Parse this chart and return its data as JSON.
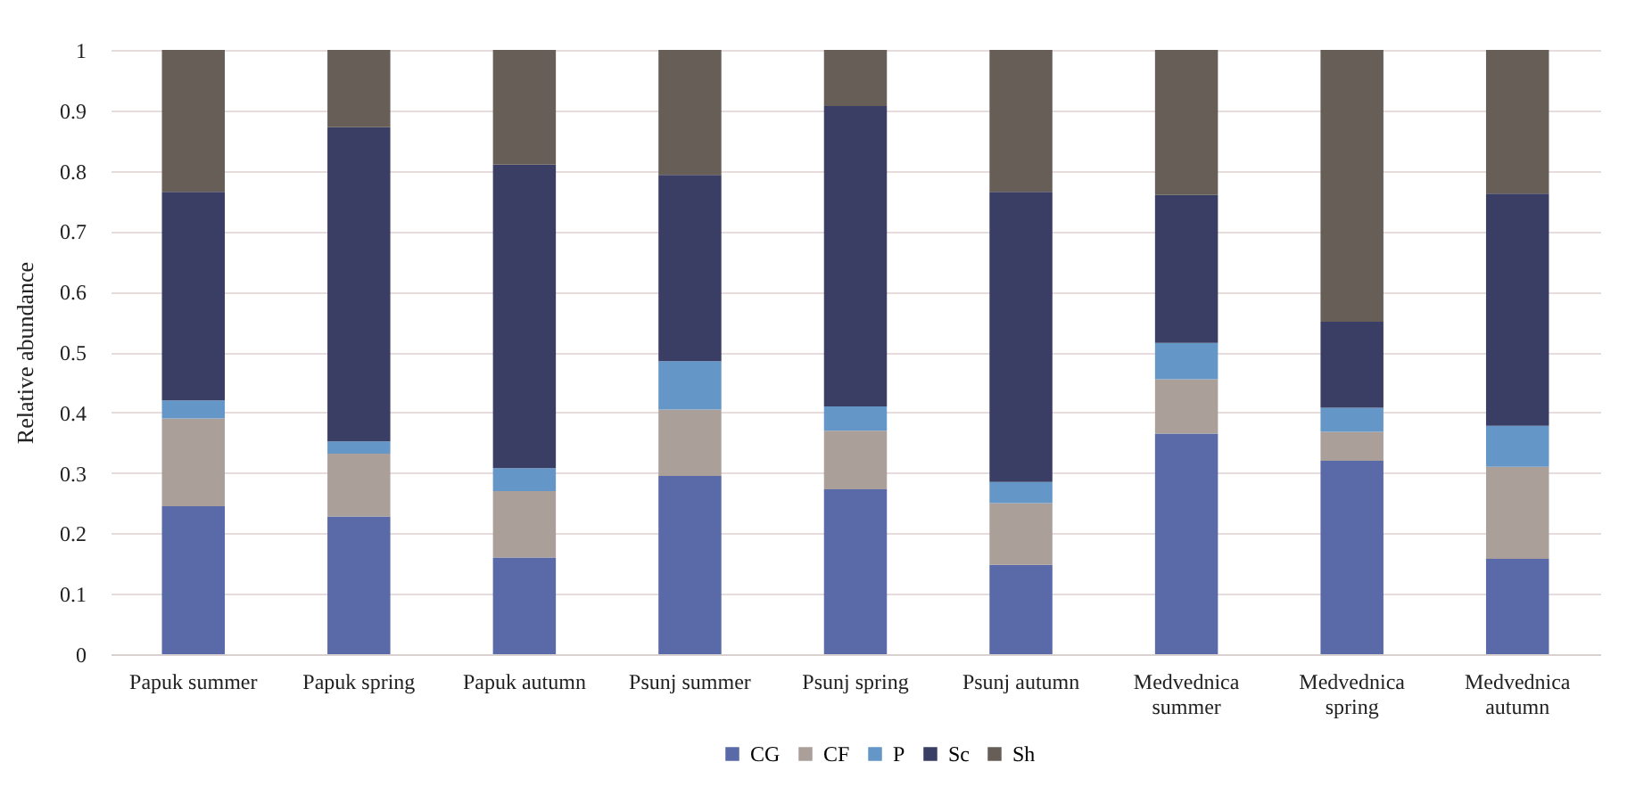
{
  "chart_data": {
    "type": "bar",
    "stacked": true,
    "ylabel": "Relative abundance",
    "categories": [
      "Papuk summer",
      "Papuk spring",
      "Papuk autumn",
      "Psunj summer",
      "Psunj spring",
      "Psunj autumn",
      "Medvednica summer",
      "Medvednica spring",
      "Medvednica autumn"
    ],
    "series": [
      {
        "name": "CG",
        "color": "#5a69a8",
        "values": [
          0.245,
          0.228,
          0.16,
          0.295,
          0.273,
          0.148,
          0.365,
          0.32,
          0.158
        ]
      },
      {
        "name": "CF",
        "color": "#ab9f99",
        "values": [
          0.145,
          0.104,
          0.11,
          0.11,
          0.097,
          0.102,
          0.09,
          0.048,
          0.152
        ]
      },
      {
        "name": "P",
        "color": "#6496c8",
        "values": [
          0.03,
          0.02,
          0.038,
          0.08,
          0.04,
          0.035,
          0.06,
          0.04,
          0.068
        ]
      },
      {
        "name": "Sc",
        "color": "#3a3e64",
        "values": [
          0.345,
          0.52,
          0.502,
          0.308,
          0.497,
          0.48,
          0.245,
          0.142,
          0.384
        ]
      },
      {
        "name": "Sh",
        "color": "#675e58",
        "values": [
          0.235,
          0.128,
          0.19,
          0.207,
          0.093,
          0.235,
          0.24,
          0.45,
          0.238
        ]
      }
    ],
    "ylim": [
      0,
      1
    ],
    "yticks": [
      0,
      0.1,
      0.2,
      0.3,
      0.4,
      0.5,
      0.6,
      0.7,
      0.8,
      0.9,
      1
    ],
    "grid": "y",
    "legend": "bottom"
  }
}
